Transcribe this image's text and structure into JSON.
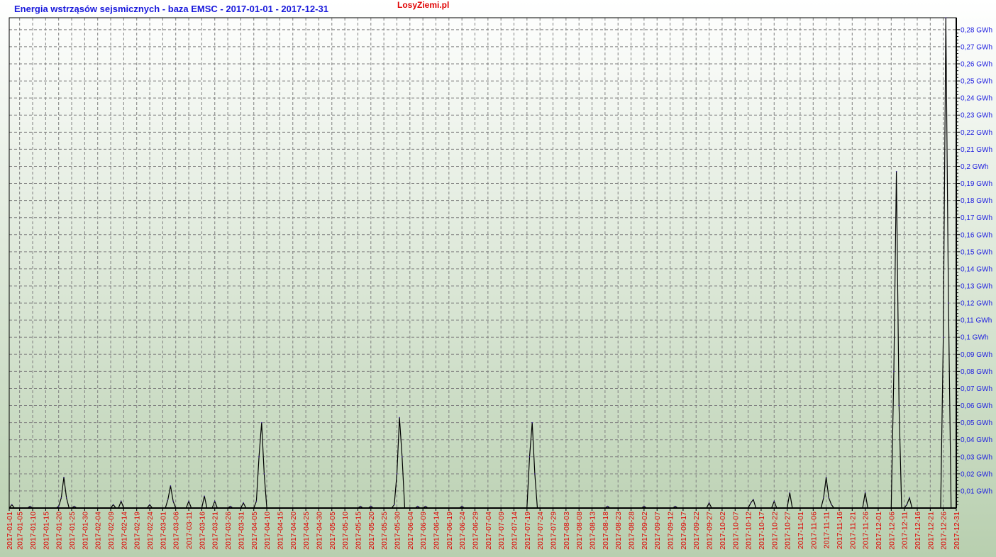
{
  "chart_data": {
    "type": "line",
    "title": "Energia wstrząsów sejsmicznych - baza EMSC - 2017-01-01 - 2017-12-31",
    "watermark": "LosyZiemi.pl",
    "x_range": [
      "2017-01-01",
      "2017-12-31"
    ],
    "ylim": [
      0,
      0.287
    ],
    "y_unit": "GWh",
    "y_ticks": [
      {
        "value": 0.01,
        "label": "0,01 GWh"
      },
      {
        "value": 0.02,
        "label": "0,02 GWh"
      },
      {
        "value": 0.03,
        "label": "0,03 GWh"
      },
      {
        "value": 0.04,
        "label": "0,04 GWh"
      },
      {
        "value": 0.05,
        "label": "0,05 GWh"
      },
      {
        "value": 0.06,
        "label": "0,06 GWh"
      },
      {
        "value": 0.07,
        "label": "0,07 GWh"
      },
      {
        "value": 0.08,
        "label": "0,08 GWh"
      },
      {
        "value": 0.09,
        "label": "0,09 GWh"
      },
      {
        "value": 0.1,
        "label": "0,1 GWh"
      },
      {
        "value": 0.11,
        "label": "0,11 GWh"
      },
      {
        "value": 0.12,
        "label": "0,12 GWh"
      },
      {
        "value": 0.13,
        "label": "0,13 GWh"
      },
      {
        "value": 0.14,
        "label": "0,14 GWh"
      },
      {
        "value": 0.15,
        "label": "0,15 GWh"
      },
      {
        "value": 0.16,
        "label": "0,16 GWh"
      },
      {
        "value": 0.17,
        "label": "0,17 GWh"
      },
      {
        "value": 0.18,
        "label": "0,18 GWh"
      },
      {
        "value": 0.19,
        "label": "0,19 GWh"
      },
      {
        "value": 0.2,
        "label": "0,2 GWh"
      },
      {
        "value": 0.21,
        "label": "0,21 GWh"
      },
      {
        "value": 0.22,
        "label": "0,22 GWh"
      },
      {
        "value": 0.23,
        "label": "0,23 GWh"
      },
      {
        "value": 0.24,
        "label": "0,24 GWh"
      },
      {
        "value": 0.25,
        "label": "0,25 GWh"
      },
      {
        "value": 0.26,
        "label": "0,26 GWh"
      },
      {
        "value": 0.27,
        "label": "0,27 GWh"
      },
      {
        "value": 0.28,
        "label": "0,28 GWh"
      }
    ],
    "x_ticks": [
      "2017-01-01",
      "2017-01-05",
      "2017-01-10",
      "2017-01-15",
      "2017-01-20",
      "2017-01-25",
      "2017-01-30",
      "2017-02-04",
      "2017-02-09",
      "2017-02-14",
      "2017-02-19",
      "2017-02-24",
      "2017-03-01",
      "2017-03-06",
      "2017-03-11",
      "2017-03-16",
      "2017-03-21",
      "2017-03-26",
      "2017-03-31",
      "2017-04-05",
      "2017-04-10",
      "2017-04-15",
      "2017-04-20",
      "2017-04-25",
      "2017-04-30",
      "2017-05-05",
      "2017-05-10",
      "2017-05-15",
      "2017-05-20",
      "2017-05-25",
      "2017-05-30",
      "2017-06-04",
      "2017-06-09",
      "2017-06-14",
      "2017-06-19",
      "2017-06-24",
      "2017-06-29",
      "2017-07-04",
      "2017-07-09",
      "2017-07-14",
      "2017-07-19",
      "2017-07-24",
      "2017-07-29",
      "2017-08-03",
      "2017-08-08",
      "2017-08-13",
      "2017-08-18",
      "2017-08-23",
      "2017-08-28",
      "2017-09-02",
      "2017-09-07",
      "2017-09-12",
      "2017-09-17",
      "2017-09-22",
      "2017-09-27",
      "2017-10-02",
      "2017-10-07",
      "2017-10-12",
      "2017-10-17",
      "2017-10-22",
      "2017-10-27",
      "2017-11-01",
      "2017-11-06",
      "2017-11-11",
      "2017-11-16",
      "2017-11-21",
      "2017-11-26",
      "2017-12-01",
      "2017-12-06",
      "2017-12-11",
      "2017-12-16",
      "2017-12-21",
      "2017-12-26",
      "2017-12-31"
    ],
    "points": [
      {
        "x": "2017-01-02",
        "y": 0.002
      },
      {
        "x": "2017-01-09",
        "y": 0.001
      },
      {
        "x": "2017-01-20",
        "y": 0.001
      },
      {
        "x": "2017-01-21",
        "y": 0.006
      },
      {
        "x": "2017-01-22",
        "y": 0.018
      },
      {
        "x": "2017-01-23",
        "y": 0.006
      },
      {
        "x": "2017-01-26",
        "y": 0.001
      },
      {
        "x": "2017-02-10",
        "y": 0.002
      },
      {
        "x": "2017-02-13",
        "y": 0.004
      },
      {
        "x": "2017-02-24",
        "y": 0.002
      },
      {
        "x": "2017-03-03",
        "y": 0.005
      },
      {
        "x": "2017-03-04",
        "y": 0.013
      },
      {
        "x": "2017-03-05",
        "y": 0.004
      },
      {
        "x": "2017-03-11",
        "y": 0.004
      },
      {
        "x": "2017-03-17",
        "y": 0.007
      },
      {
        "x": "2017-03-21",
        "y": 0.004
      },
      {
        "x": "2017-03-27",
        "y": 0.001
      },
      {
        "x": "2017-04-01",
        "y": 0.003
      },
      {
        "x": "2017-04-06",
        "y": 0.004
      },
      {
        "x": "2017-04-07",
        "y": 0.03
      },
      {
        "x": "2017-04-08",
        "y": 0.05
      },
      {
        "x": "2017-04-09",
        "y": 0.02
      },
      {
        "x": "2017-05-16",
        "y": 0.001
      },
      {
        "x": "2017-05-20",
        "y": 0.001
      },
      {
        "x": "2017-05-29",
        "y": 0.002
      },
      {
        "x": "2017-05-30",
        "y": 0.02
      },
      {
        "x": "2017-05-31",
        "y": 0.053
      },
      {
        "x": "2017-06-01",
        "y": 0.03
      },
      {
        "x": "2017-06-07",
        "y": 0.001
      },
      {
        "x": "2017-06-10",
        "y": 0.001
      },
      {
        "x": "2017-06-24",
        "y": 0.001
      },
      {
        "x": "2017-07-20",
        "y": 0.03
      },
      {
        "x": "2017-07-21",
        "y": 0.05
      },
      {
        "x": "2017-07-22",
        "y": 0.02
      },
      {
        "x": "2017-08-19",
        "y": 0.001
      },
      {
        "x": "2017-09-02",
        "y": 0.001
      },
      {
        "x": "2017-09-14",
        "y": 0.001
      },
      {
        "x": "2017-09-27",
        "y": 0.003
      },
      {
        "x": "2017-10-13",
        "y": 0.003
      },
      {
        "x": "2017-10-14",
        "y": 0.005
      },
      {
        "x": "2017-10-22",
        "y": 0.004
      },
      {
        "x": "2017-10-28",
        "y": 0.009
      },
      {
        "x": "2017-11-10",
        "y": 0.006
      },
      {
        "x": "2017-11-11",
        "y": 0.018
      },
      {
        "x": "2017-11-12",
        "y": 0.006
      },
      {
        "x": "2017-11-13",
        "y": 0.002
      },
      {
        "x": "2017-11-26",
        "y": 0.009
      },
      {
        "x": "2017-12-07",
        "y": 0.08
      },
      {
        "x": "2017-12-08",
        "y": 0.197
      },
      {
        "x": "2017-12-09",
        "y": 0.06
      },
      {
        "x": "2017-12-12",
        "y": 0.002
      },
      {
        "x": "2017-12-13",
        "y": 0.006
      },
      {
        "x": "2017-12-26",
        "y": 0.1
      },
      {
        "x": "2017-12-27",
        "y": 0.3
      },
      {
        "x": "2017-12-28",
        "y": 0.12
      }
    ],
    "grid": true,
    "y_axis_position": "right",
    "colors": {
      "line": "#000000",
      "title": "#1a1adc",
      "watermark": "#e00000",
      "x_labels": "#e00000",
      "y_labels": "#2020e0",
      "bg_top": "#ffffff",
      "bg_bottom": "#b8cfaf"
    }
  }
}
